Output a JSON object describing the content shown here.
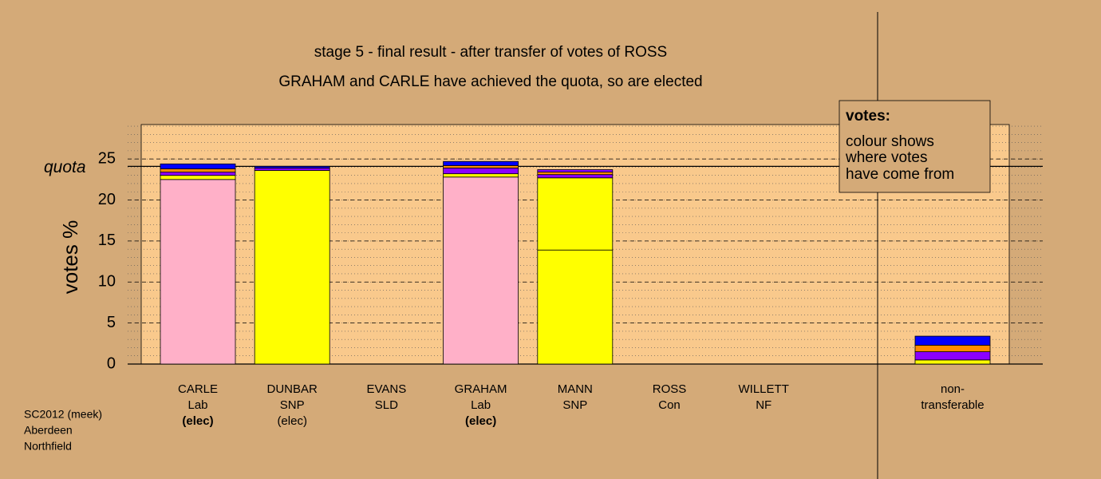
{
  "chart_data": {
    "type": "stacked-bar",
    "title": "stage 5 - final result - after transfer of votes of ROSS",
    "subtitle": "GRAHAM and CARLE have achieved the quota, so are elected",
    "y_label": "votes %",
    "quota_label": "quota",
    "quota": 24.1,
    "categories": [
      {
        "name": "CARLE",
        "party": "Lab",
        "status": "(elec)",
        "status_bold": true
      },
      {
        "name": "DUNBAR",
        "party": "SNP",
        "status": "(elec)",
        "status_bold": false
      },
      {
        "name": "EVANS",
        "party": "SLD"
      },
      {
        "name": "GRAHAM",
        "party": "Lab",
        "status": "(elec)",
        "status_bold": true
      },
      {
        "name": "MANN",
        "party": "SNP"
      },
      {
        "name": "ROSS",
        "party": "Con"
      },
      {
        "name": "WILLETT",
        "party": "NF"
      },
      {
        "name": "non-",
        "party": "transferable"
      }
    ],
    "stacks": [
      [
        22.5,
        0.5,
        0.4,
        0.4,
        0.6
      ],
      [
        23.6,
        0.3,
        0.2
      ],
      [],
      [
        22.8,
        0.4,
        0.7,
        0.3,
        0.5
      ],
      [
        13.9,
        8.8,
        0.4,
        0.3,
        0.3
      ],
      [],
      [],
      [
        0.5,
        1.0,
        0.8,
        1.1
      ]
    ],
    "stack_colors": [
      [
        "#ffb0c8",
        "#ffff00",
        "#8b00ff",
        "#ff8c00",
        "#0000ff"
      ],
      [
        "#ffff00",
        "#8b00ff",
        "#0000ff"
      ],
      [],
      [
        "#ffb0c8",
        "#ffff00",
        "#8b00ff",
        "#ff8c00",
        "#0000ff"
      ],
      [
        "#ffff00",
        "#ffff00",
        "#8b00ff",
        "#ff8c00",
        "#8b00ff"
      ],
      [],
      [],
      [
        "#ffff00",
        "#8b00ff",
        "#ff8c00",
        "#0000ff"
      ]
    ],
    "ylim": [
      0,
      29.2
    ],
    "yticks": [
      0,
      5,
      10,
      15,
      20,
      25
    ],
    "minor_grid_step": 1,
    "info_box": {
      "title": "votes:",
      "lines": [
        "colour shows",
        "where votes",
        "have come from"
      ]
    },
    "footnote": [
      "SC2012 (meek)",
      "Aberdeen",
      "Northfield"
    ]
  }
}
